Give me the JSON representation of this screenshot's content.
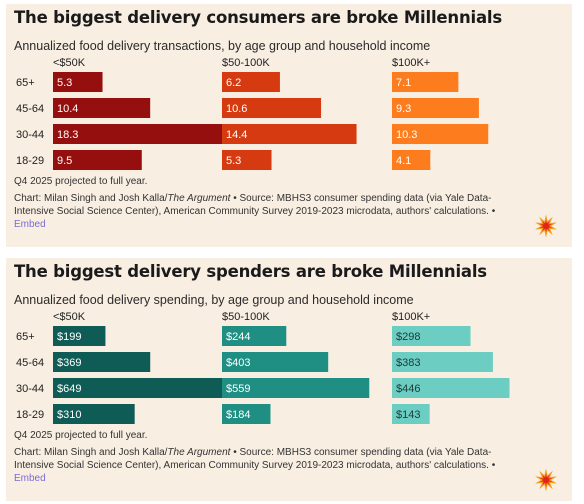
{
  "chart_data": [
    {
      "type": "bar",
      "layout": "small-multiples-horizontal",
      "title": "The biggest delivery consumers are broke Millennials",
      "subtitle": "Annualized food delivery transactions, by age group and household income",
      "categories": [
        "65+",
        "45-64",
        "30-44",
        "18-29"
      ],
      "xlim": [
        0,
        18.3
      ],
      "series": [
        {
          "name": "<$50K",
          "values": [
            5.3,
            10.4,
            18.3,
            9.5
          ],
          "labels": [
            "5.3",
            "10.4",
            "18.3",
            "9.5"
          ],
          "color": "#960f0f",
          "label_color": "#ffffff"
        },
        {
          "name": "$50-100K",
          "values": [
            6.2,
            10.6,
            14.4,
            5.3
          ],
          "labels": [
            "6.2",
            "10.6",
            "14.4",
            "5.3"
          ],
          "color": "#d63a10",
          "label_color": "#ffffff"
        },
        {
          "name": "$100K+",
          "values": [
            7.1,
            9.3,
            10.3,
            4.1
          ],
          "labels": [
            "7.1",
            "9.3",
            "10.3",
            "4.1"
          ],
          "color": "#fd7c1d",
          "label_color": "#ffffff"
        }
      ],
      "note": "Q4 2025 projected to full year.",
      "source_prefix": "Chart: Milan Singh and Josh Kalla/",
      "source_publication": "The Argument",
      "source_suffix": " • Source: MBHS3 consumer spending data (via Yale Data-Intensive Social Science Center), American Community Survey 2019-2023 microdata, authors' calculations. • ",
      "embed_label": "Embed"
    },
    {
      "type": "bar",
      "layout": "small-multiples-horizontal",
      "title": "The biggest delivery spenders are broke Millennials",
      "subtitle": "Annualized food delivery spending, by age group and household income",
      "categories": [
        "65+",
        "45-64",
        "30-44",
        "18-29"
      ],
      "xlim": [
        0,
        649
      ],
      "series": [
        {
          "name": "<$50K",
          "values": [
            199,
            369,
            649,
            310
          ],
          "labels": [
            "$199",
            "$369",
            "$649",
            "$310"
          ],
          "color": "#0f5b55",
          "label_color": "#ffffff"
        },
        {
          "name": "$50-100K",
          "values": [
            244,
            403,
            559,
            184
          ],
          "labels": [
            "$244",
            "$403",
            "$559",
            "$184"
          ],
          "color": "#1f8e83",
          "label_color": "#ffffff"
        },
        {
          "name": "$100K+",
          "values": [
            298,
            383,
            446,
            143
          ],
          "labels": [
            "$298",
            "$383",
            "$446",
            "$143"
          ],
          "color": "#6ccdc3",
          "label_color": "#1f3a37"
        }
      ],
      "note": "Q4 2025 projected to full year.",
      "source_prefix": "Chart: Milan Singh and Josh Kalla/",
      "source_publication": "The Argument",
      "source_suffix": " • Source: MBHS3 consumer spending data (via Yale Data-Intensive Social Science Center), American Community Survey 2019-2023 microdata, authors' calculations. • ",
      "embed_label": "Embed"
    }
  ],
  "icons": {
    "burst": "argument-burst-logo-icon",
    "burst_outer": "#f59a1c",
    "burst_inner": "#e3241b"
  }
}
